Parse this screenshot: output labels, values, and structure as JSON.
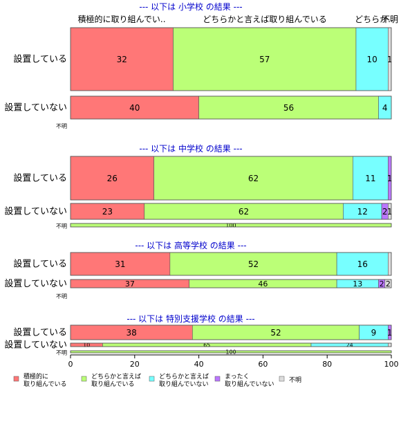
{
  "colors": {
    "c1": "#ff7777",
    "c2": "#bbff77",
    "c3": "#77ffff",
    "c4": "#bb77ff",
    "c5": "#dddddd",
    "title": "#0000cc",
    "axis": "#000000"
  },
  "header_labels": [
    "積極的に取り組んでい..",
    "どちらかと言えば取り組んでいる",
    "どちらか..",
    "不明"
  ],
  "axis_ticks": [
    "0",
    "20",
    "40",
    "60",
    "80",
    "100"
  ],
  "legend": [
    {
      "line1": "積極的に",
      "line2": "取り組んでいる"
    },
    {
      "line1": "どちらかと言えば",
      "line2": "取り組んでいる"
    },
    {
      "line1": "どちらかと言えば",
      "line2": "取り組んでいない"
    },
    {
      "line1": "まったく",
      "line2": "取り組んでいない"
    },
    {
      "line1": "不明",
      "line2": ""
    }
  ],
  "chart_data": {
    "type": "bar",
    "orientation": "horizontal",
    "stacked": "percent",
    "xlim": [
      0,
      100
    ],
    "series_names": [
      "積極的に取り組んでいる",
      "どちらかと言えば取り組んでいる",
      "どちらかと言えば取り組んでいない",
      "まったく取り組んでいない",
      "不明"
    ],
    "groups": [
      {
        "title": "--- 以下は 小学校 の結果 ---",
        "rows": [
          {
            "label": "設置している",
            "values": [
              32,
              57,
              10,
              0,
              1
            ],
            "labels": [
              "32",
              "57",
              "10",
              "",
              "1"
            ]
          },
          {
            "label": "設置していない",
            "values": [
              40,
              56,
              4,
              0,
              0
            ],
            "labels": [
              "40",
              "56",
              "4",
              "",
              ""
            ]
          },
          {
            "label": "不明",
            "values": [
              0,
              0,
              0,
              0,
              0
            ],
            "labels": [
              "",
              "",
              "",
              "",
              ""
            ]
          }
        ]
      },
      {
        "title": "--- 以下は 中学校 の結果 ---",
        "rows": [
          {
            "label": "設置している",
            "values": [
              26,
              62,
              11,
              1,
              0
            ],
            "labels": [
              "26",
              "62",
              "11",
              "1",
              ""
            ]
          },
          {
            "label": "設置していない",
            "values": [
              23,
              62,
              12,
              2,
              1
            ],
            "labels": [
              "23",
              "62",
              "12",
              "2",
              "1"
            ]
          },
          {
            "label": "不明",
            "values": [
              0,
              100,
              0,
              0,
              0
            ],
            "labels": [
              "",
              "100",
              "",
              "",
              ""
            ]
          }
        ]
      },
      {
        "title": "--- 以下は 高等学校 の結果 ---",
        "rows": [
          {
            "label": "設置している",
            "values": [
              31,
              52,
              16,
              0,
              1
            ],
            "labels": [
              "31",
              "52",
              "16",
              "",
              ""
            ]
          },
          {
            "label": "設置していない",
            "values": [
              37,
              46,
              13,
              2,
              2
            ],
            "labels": [
              "37",
              "46",
              "13",
              "2",
              "2"
            ]
          },
          {
            "label": "不明",
            "values": [
              0,
              0,
              0,
              0,
              0
            ],
            "labels": [
              "",
              "",
              "",
              "",
              ""
            ]
          }
        ]
      },
      {
        "title": "--- 以下は 特別支援学校 の結果 ---",
        "rows": [
          {
            "label": "設置している",
            "values": [
              38,
              52,
              9,
              1,
              0
            ],
            "labels": [
              "38",
              "52",
              "9",
              "1",
              ""
            ]
          },
          {
            "label": "設置していない",
            "values": [
              10,
              65,
              24,
              0,
              1
            ],
            "labels": [
              "10",
              "65",
              "24",
              "",
              ""
            ]
          },
          {
            "label": "不明",
            "values": [
              0,
              100,
              0,
              0,
              0
            ],
            "labels": [
              "",
              "100",
              "",
              "",
              ""
            ]
          }
        ]
      }
    ]
  }
}
